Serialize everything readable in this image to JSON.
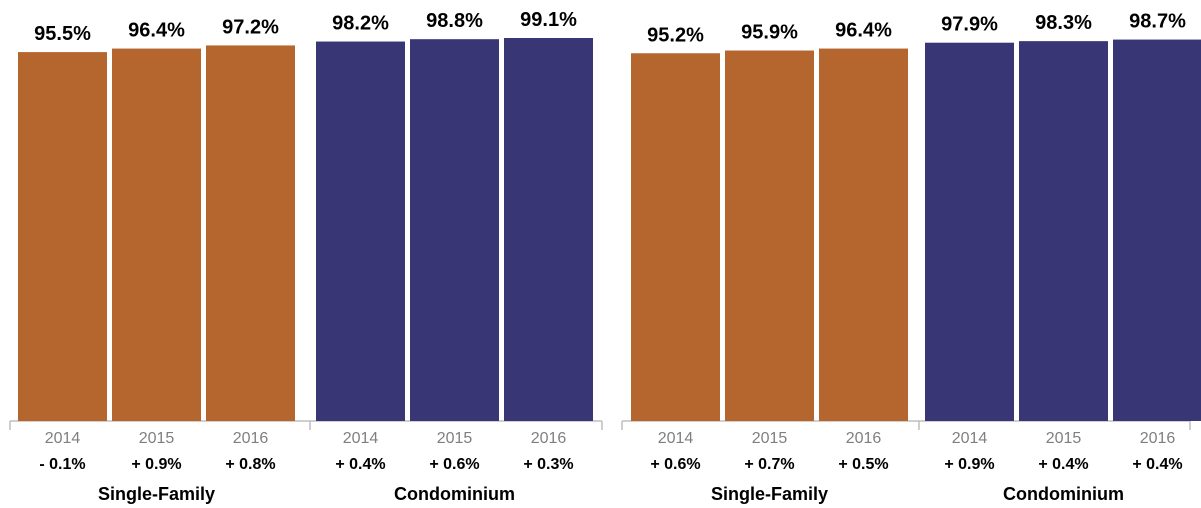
{
  "colors": {
    "single_family": "#B5652E",
    "condominium": "#383675",
    "axis": "#BFBFBF",
    "year_label": "#7F7F7F"
  },
  "chart_data": [
    {
      "type": "bar",
      "ylim": [
        0,
        100
      ],
      "groups": [
        {
          "name": "Single-Family",
          "color_key": "single_family",
          "bars": [
            {
              "year": "2014",
              "value": 95.5,
              "value_label": "95.5%",
              "change_label": "- 0.1%"
            },
            {
              "year": "2015",
              "value": 96.4,
              "value_label": "96.4%",
              "change_label": "+ 0.9%"
            },
            {
              "year": "2016",
              "value": 97.2,
              "value_label": "97.2%",
              "change_label": "+ 0.8%"
            }
          ]
        },
        {
          "name": "Condominium",
          "color_key": "condominium",
          "bars": [
            {
              "year": "2014",
              "value": 98.2,
              "value_label": "98.2%",
              "change_label": "+ 0.4%"
            },
            {
              "year": "2015",
              "value": 98.8,
              "value_label": "98.8%",
              "change_label": "+ 0.6%"
            },
            {
              "year": "2016",
              "value": 99.1,
              "value_label": "99.1%",
              "change_label": "+ 0.3%"
            }
          ]
        }
      ]
    },
    {
      "type": "bar",
      "ylim": [
        0,
        100
      ],
      "groups": [
        {
          "name": "Single-Family",
          "color_key": "single_family",
          "bars": [
            {
              "year": "2014",
              "value": 95.2,
              "value_label": "95.2%",
              "change_label": "+ 0.6%"
            },
            {
              "year": "2015",
              "value": 95.9,
              "value_label": "95.9%",
              "change_label": "+ 0.7%"
            },
            {
              "year": "2016",
              "value": 96.4,
              "value_label": "96.4%",
              "change_label": "+ 0.5%"
            }
          ]
        },
        {
          "name": "Condominium",
          "color_key": "condominium",
          "bars": [
            {
              "year": "2014",
              "value": 97.9,
              "value_label": "97.9%",
              "change_label": "+ 0.9%"
            },
            {
              "year": "2015",
              "value": 98.3,
              "value_label": "98.3%",
              "change_label": "+ 0.4%"
            },
            {
              "year": "2016",
              "value": 98.7,
              "value_label": "98.7%",
              "change_label": "+ 0.4%"
            }
          ]
        }
      ]
    }
  ]
}
